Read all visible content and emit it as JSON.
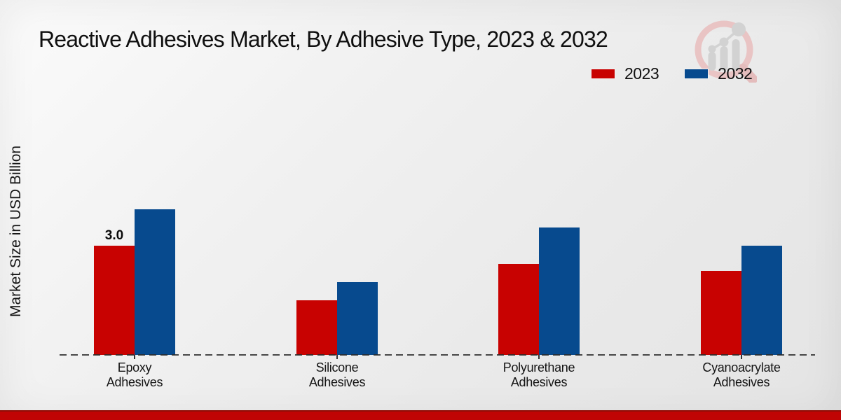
{
  "chart_data": {
    "type": "bar",
    "title": "Reactive Adhesives Market, By Adhesive Type, 2023 & 2032",
    "ylabel": "Market Size in USD Billion",
    "xlabel": "",
    "categories": [
      "Epoxy Adhesives",
      "Silicone Adhesives",
      "Polyurethane Adhesives",
      "Cyanoacrylate Adhesives"
    ],
    "series": [
      {
        "name": "2023",
        "color": "#c80201",
        "values": [
          3.0,
          1.5,
          2.5,
          2.3
        ]
      },
      {
        "name": "2032",
        "color": "#074a8e",
        "values": [
          4.0,
          2.0,
          3.5,
          3.0
        ]
      }
    ],
    "value_labels": [
      {
        "category_index": 0,
        "series_index": 0,
        "text": "3.0"
      }
    ],
    "ylim": [
      0,
      4.5
    ],
    "grid": false,
    "baseline_style": "dashed",
    "legend_position": "top-right"
  },
  "colors": {
    "series_2023": "#c80201",
    "series_2032": "#074a8e",
    "footer_bar": "#c00404",
    "background": "#ededed"
  },
  "icons": {
    "watermark": "magnifier-growth-chart-logo"
  }
}
